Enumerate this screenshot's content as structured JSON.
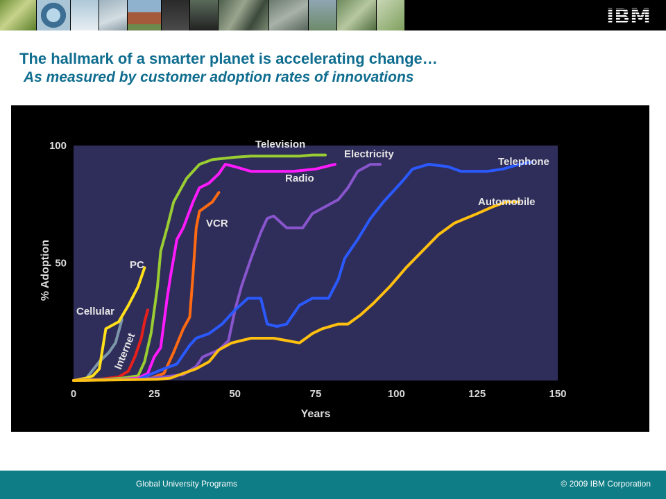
{
  "header": {
    "brand": "IBM",
    "banner_images": [
      "globe-sketch-photo",
      "solar-array-photo",
      "power-lines-photo",
      "house-photo",
      "dark-landscape-photo",
      "aerial-city-photo",
      "traffic-photo",
      "field-photo",
      "circuit-photo",
      "plant-photo"
    ]
  },
  "slide": {
    "title": "The hallmark of a smarter planet is accelerating change…",
    "subtitle": "As measured by customer adoption rates of innovations"
  },
  "chart_data": {
    "type": "line",
    "xlabel": "Years",
    "ylabel": "% Adoption",
    "xlim": [
      0,
      150
    ],
    "ylim": [
      0,
      100
    ],
    "x_ticks": [
      "0",
      "25",
      "50",
      "75",
      "100",
      "125",
      "150"
    ],
    "y_ticks": [
      "100",
      "50"
    ],
    "grid": false,
    "plot_background": "#2f2d5a",
    "series": [
      {
        "name": "Cellular",
        "color": "#7c97a9",
        "label_mode": "normal",
        "points": [
          [
            0,
            0
          ],
          [
            4,
            1
          ],
          [
            8,
            8
          ],
          [
            11,
            12
          ],
          [
            13,
            16
          ],
          [
            15,
            26
          ]
        ]
      },
      {
        "name": "PC",
        "color": "#ffe01a",
        "label_mode": "normal",
        "points": [
          [
            0,
            0
          ],
          [
            4,
            1
          ],
          [
            6,
            2
          ],
          [
            8,
            5
          ],
          [
            10,
            22
          ],
          [
            14,
            25
          ],
          [
            17,
            32
          ],
          [
            20,
            40
          ],
          [
            22,
            48
          ]
        ]
      },
      {
        "name": "Internet",
        "color": "#e8201c",
        "label_mode": "rotated",
        "points": [
          [
            0,
            0
          ],
          [
            8,
            0.5
          ],
          [
            14,
            1.5
          ],
          [
            17,
            4
          ],
          [
            19,
            10
          ],
          [
            21,
            18
          ],
          [
            22,
            25
          ],
          [
            23,
            30
          ]
        ]
      },
      {
        "name": "Television",
        "color": "#9acd32",
        "label_mode": "normal",
        "points": [
          [
            0,
            0
          ],
          [
            10,
            0.5
          ],
          [
            15,
            1
          ],
          [
            20,
            2
          ],
          [
            22,
            8
          ],
          [
            24,
            20
          ],
          [
            26,
            40
          ],
          [
            27,
            55
          ],
          [
            29,
            65
          ],
          [
            31,
            76
          ],
          [
            35,
            86
          ],
          [
            39,
            92
          ],
          [
            43,
            94
          ],
          [
            50,
            95
          ],
          [
            55,
            95.5
          ],
          [
            62,
            95.5
          ],
          [
            70,
            95.5
          ],
          [
            74,
            96
          ],
          [
            78,
            96
          ]
        ]
      },
      {
        "name": "Radio",
        "color": "#ff1aff",
        "label_mode": "normal",
        "points": [
          [
            0,
            0
          ],
          [
            15,
            0.5
          ],
          [
            20,
            1
          ],
          [
            23,
            3
          ],
          [
            25,
            10
          ],
          [
            27,
            14
          ],
          [
            29,
            35
          ],
          [
            30,
            44
          ],
          [
            31,
            52
          ],
          [
            32,
            60
          ],
          [
            34,
            65
          ],
          [
            37,
            76
          ],
          [
            39,
            82
          ],
          [
            42,
            84
          ],
          [
            45,
            88
          ],
          [
            47,
            92
          ],
          [
            50,
            91
          ],
          [
            55,
            89
          ],
          [
            60,
            89
          ],
          [
            68,
            89
          ],
          [
            75,
            90
          ],
          [
            81,
            92
          ]
        ]
      },
      {
        "name": "VCR",
        "color": "#ff6a12",
        "label_mode": "normal",
        "points": [
          [
            0,
            0
          ],
          [
            18,
            0.5
          ],
          [
            24,
            1
          ],
          [
            28,
            3
          ],
          [
            31,
            12
          ],
          [
            34,
            22
          ],
          [
            36,
            27
          ],
          [
            37,
            45
          ],
          [
            38,
            65
          ],
          [
            39,
            72
          ],
          [
            43,
            76
          ],
          [
            45,
            80
          ]
        ]
      },
      {
        "name": "Electricity",
        "color": "#8855cc",
        "label_mode": "normal",
        "points": [
          [
            0,
            0
          ],
          [
            20,
            0.5
          ],
          [
            28,
            1.5
          ],
          [
            34,
            2.5
          ],
          [
            38,
            6
          ],
          [
            40,
            10
          ],
          [
            45,
            13
          ],
          [
            48,
            17
          ],
          [
            50,
            30
          ],
          [
            52,
            40
          ],
          [
            55,
            52
          ],
          [
            58,
            63
          ],
          [
            60,
            69
          ],
          [
            62,
            70
          ],
          [
            66,
            65
          ],
          [
            71,
            65
          ],
          [
            74,
            71
          ],
          [
            78,
            74
          ],
          [
            82,
            77
          ],
          [
            85,
            82
          ],
          [
            88,
            89
          ],
          [
            92,
            92
          ],
          [
            95,
            92
          ]
        ]
      },
      {
        "name": "Telephone",
        "color": "#2a5aff",
        "label_mode": "normal",
        "points": [
          [
            0,
            0
          ],
          [
            20,
            0.5
          ],
          [
            28,
            5
          ],
          [
            32,
            7
          ],
          [
            36,
            15
          ],
          [
            38,
            18
          ],
          [
            42,
            20
          ],
          [
            46,
            24
          ],
          [
            50,
            30
          ],
          [
            54,
            35
          ],
          [
            58,
            35
          ],
          [
            60,
            24
          ],
          [
            63,
            23
          ],
          [
            66,
            24
          ],
          [
            70,
            32
          ],
          [
            74,
            35
          ],
          [
            79,
            35
          ],
          [
            82,
            43
          ],
          [
            84,
            52
          ],
          [
            88,
            60
          ],
          [
            92,
            69
          ],
          [
            96,
            76
          ],
          [
            102,
            85
          ],
          [
            105,
            90
          ],
          [
            110,
            92
          ],
          [
            116,
            91
          ],
          [
            120,
            89
          ],
          [
            128,
            89
          ],
          [
            133,
            90
          ],
          [
            138,
            92
          ],
          [
            142,
            93
          ]
        ]
      },
      {
        "name": "Automobile",
        "color": "#ffc010",
        "label_mode": "normal",
        "points": [
          [
            0,
            0
          ],
          [
            26,
            0.5
          ],
          [
            30,
            1
          ],
          [
            34,
            3
          ],
          [
            38,
            5
          ],
          [
            42,
            8
          ],
          [
            45,
            13
          ],
          [
            49,
            16
          ],
          [
            55,
            18
          ],
          [
            62,
            18
          ],
          [
            66,
            17
          ],
          [
            70,
            16
          ],
          [
            74,
            20
          ],
          [
            77,
            22
          ],
          [
            82,
            24
          ],
          [
            85,
            24
          ],
          [
            89,
            28
          ],
          [
            93,
            33
          ],
          [
            98,
            40
          ],
          [
            103,
            48
          ],
          [
            108,
            55
          ],
          [
            113,
            62
          ],
          [
            118,
            67
          ],
          [
            125,
            71
          ],
          [
            130,
            74
          ],
          [
            134,
            76
          ],
          [
            138,
            76
          ]
        ]
      }
    ]
  },
  "footer": {
    "left": "Global University Programs",
    "right": "© 2009 IBM Corporation"
  }
}
